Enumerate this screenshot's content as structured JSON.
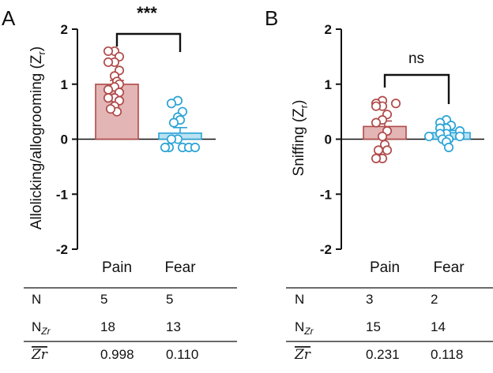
{
  "panels": [
    {
      "letter": "A",
      "ylabel_main": "Allolicking/allogrooming (Z",
      "ylabel_sub": "r",
      "ylabel_close": ")",
      "significance": "***",
      "table": {
        "rows": [
          {
            "label": "N",
            "values": [
              "5",
              "5"
            ]
          },
          {
            "label": "N",
            "sub": "Zr",
            "values": [
              "18",
              "13"
            ]
          },
          {
            "label": "Zr",
            "overline": true,
            "values": [
              "0.998",
              "0.110"
            ]
          }
        ]
      }
    },
    {
      "letter": "B",
      "ylabel_main": "Sniffing (Z",
      "ylabel_sub": "r",
      "ylabel_close": ")",
      "significance": "ns",
      "table": {
        "rows": [
          {
            "label": "N",
            "values": [
              "3",
              "2"
            ]
          },
          {
            "label": "N",
            "sub": "Zr",
            "values": [
              "15",
              "14"
            ]
          },
          {
            "label": "Zr",
            "overline": true,
            "values": [
              "0.231",
              "0.118"
            ]
          }
        ]
      }
    }
  ],
  "colors": {
    "pain_fill": "#e3b5b5",
    "pain_stroke": "#b04a4a",
    "fear_fill": "#b9e2f2",
    "fear_stroke": "#2aa3d6"
  },
  "chart_data": [
    {
      "type": "bar",
      "panel": "A",
      "title": "",
      "xlabel": "",
      "ylabel": "Allolicking/allogrooming (Zr)",
      "ylim": [
        -2,
        2
      ],
      "yticks": [
        "-2",
        "-1",
        "0",
        "1",
        "2"
      ],
      "categories": [
        "Pain",
        "Fear"
      ],
      "means": [
        0.998,
        0.11
      ],
      "sem": [
        0.07,
        0.1
      ],
      "points": [
        [
          1.6,
          1.6,
          1.5,
          1.4,
          1.4,
          1.25,
          1.15,
          1.05,
          1.0,
          0.95,
          0.9,
          0.85,
          0.75,
          0.75,
          0.7,
          0.6,
          0.5,
          0.55
        ],
        [
          0.7,
          0.65,
          0.5,
          0.4,
          0.35,
          0.3,
          0.0,
          0.0,
          -0.15,
          -0.15,
          -0.15,
          -0.15,
          -0.15
        ]
      ],
      "significance": "***"
    },
    {
      "type": "bar",
      "panel": "B",
      "title": "",
      "xlabel": "",
      "ylabel": "Sniffing (Zr)",
      "ylim": [
        -2,
        2
      ],
      "yticks": [
        "-2",
        "-1",
        "0",
        "1",
        "2"
      ],
      "categories": [
        "Pain",
        "Fear"
      ],
      "means": [
        0.231,
        0.118
      ],
      "sem": [
        0.1,
        0.04
      ],
      "points": [
        [
          0.7,
          0.65,
          0.65,
          0.6,
          0.6,
          0.45,
          0.35,
          0.3,
          0.15,
          0.05,
          -0.1,
          -0.2,
          -0.35,
          -0.35,
          -0.2
        ],
        [
          0.35,
          0.3,
          0.25,
          0.2,
          0.2,
          0.15,
          0.1,
          0.1,
          0.05,
          0.05,
          0.0,
          0.0,
          -0.05,
          -0.15
        ]
      ],
      "significance": "ns"
    }
  ]
}
